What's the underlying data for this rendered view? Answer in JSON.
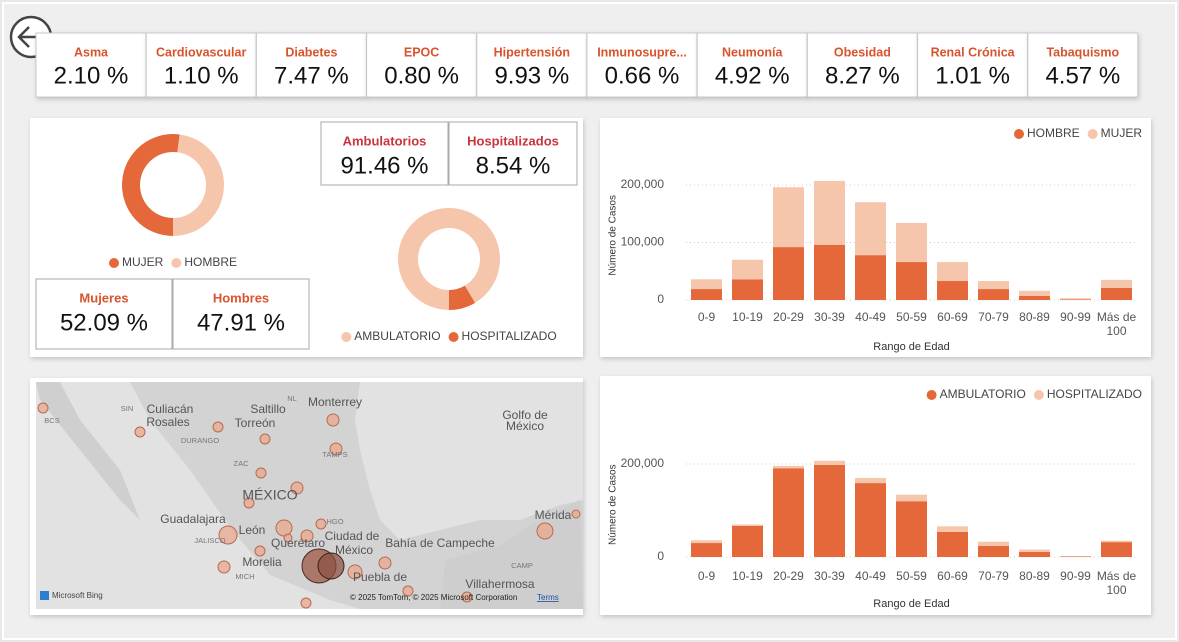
{
  "kpis": [
    {
      "label": "Asma",
      "value": "2.10 %"
    },
    {
      "label": "Cardiovascular",
      "value": "1.10 %"
    },
    {
      "label": "Diabetes",
      "value": "7.47 %"
    },
    {
      "label": "EPOC",
      "value": "0.80 %"
    },
    {
      "label": "Hipertensión",
      "value": "9.93 %"
    },
    {
      "label": "Inmunosupre...",
      "value": "0.66 %"
    },
    {
      "label": "Neumonía",
      "value": "4.92 %"
    },
    {
      "label": "Obesidad",
      "value": "8.27 %"
    },
    {
      "label": "Renal Crónica",
      "value": "1.01 %"
    },
    {
      "label": "Tabaquismo",
      "value": "4.57 %"
    }
  ],
  "gender_cards": [
    {
      "label": "Mujeres",
      "value": "52.09 %"
    },
    {
      "label": "Hombres",
      "value": "47.91 %"
    }
  ],
  "care_cards": [
    {
      "label": "Ambulatorios",
      "value": "91.46 %"
    },
    {
      "label": "Hospitalizados",
      "value": "8.54 %"
    }
  ],
  "chart_data": [
    {
      "type": "donut",
      "categories": [
        "MUJER",
        "HOMBRE"
      ],
      "values": [
        52.09,
        47.91
      ],
      "colors": [
        "#e4683a",
        "#f5c6ac"
      ]
    },
    {
      "type": "donut",
      "categories": [
        "AMBULATORIO",
        "HOSPITALIZADO"
      ],
      "values": [
        91.46,
        8.54
      ],
      "colors": [
        "#f5c6ac",
        "#e4683a"
      ]
    },
    {
      "type": "bar",
      "stacked": true,
      "grid": true,
      "legend": "top-right",
      "y_label": "Número de Casos",
      "x_label": "Rango de Edad",
      "categories": [
        "0-9",
        "10-19",
        "20-29",
        "30-39",
        "40-49",
        "50-59",
        "60-69",
        "70-79",
        "80-89",
        "90-99",
        "Más de 100"
      ],
      "series": [
        {
          "name": "HOMBRE",
          "color": "#e4683a",
          "values": [
            19000,
            36000,
            92000,
            96000,
            78000,
            66000,
            33000,
            19000,
            7000,
            1000,
            21000
          ]
        },
        {
          "name": "MUJER",
          "color": "#f5c6ac",
          "values": [
            17000,
            34000,
            104000,
            111000,
            92000,
            68000,
            33000,
            14000,
            9000,
            2000,
            14000
          ]
        }
      ],
      "ylim": [
        0,
        225000
      ],
      "yticks": [
        0,
        {
          "value": 100000,
          "label": "100,000"
        },
        {
          "value": 200000,
          "label": "200,000"
        }
      ]
    },
    {
      "type": "bar",
      "stacked": true,
      "grid": true,
      "legend": "top-right",
      "y_label": "Número de Casos",
      "x_label": "Rango de Edad",
      "categories": [
        "0-9",
        "10-19",
        "20-29",
        "30-39",
        "40-49",
        "50-59",
        "60-69",
        "70-79",
        "80-89",
        "90-99",
        "Más de 100"
      ],
      "series": [
        {
          "name": "AMBULATORIO",
          "color": "#e4683a",
          "values": [
            30000,
            67000,
            191000,
            198000,
            159000,
            120000,
            54000,
            24000,
            11000,
            1000,
            32000
          ]
        },
        {
          "name": "HOSPITALIZADO",
          "color": "#f5c6ac",
          "values": [
            6000,
            3000,
            5000,
            9000,
            11000,
            14000,
            12000,
            9000,
            5000,
            1000,
            3000
          ]
        }
      ],
      "ylim": [
        0,
        225000
      ],
      "yticks": [
        0,
        {
          "value": 200000,
          "label": "200,000"
        }
      ]
    }
  ],
  "map": {
    "labels": [
      "Culiacán",
      "Rosales",
      "Saltillo",
      "Torreón",
      "Monterrey",
      "Golfo de",
      "México",
      "MÉXICO",
      "Guadalajara",
      "León",
      "Querétaro",
      "Ciudad de",
      "México",
      "Bahía de Campeche",
      "Mérida",
      "Morelia",
      "Puebla de",
      "Villahermosa",
      "SIN",
      "BCS",
      "DURANGO",
      "ZAC",
      "NL",
      "TAMPS",
      "HGO",
      "JALISCO",
      "MICH",
      "CAMP"
    ],
    "logo": "Microsoft Bing",
    "attribution": "© 2025 TomTom, © 2025 Microsoft Corporation",
    "terms": "Terms"
  }
}
